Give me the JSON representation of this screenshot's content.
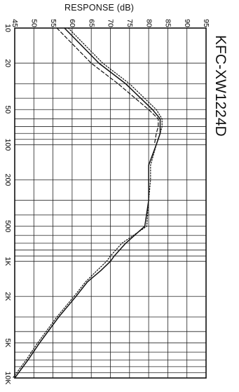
{
  "chart_data": {
    "type": "line",
    "title": "KFC-XW1224D",
    "ylabel": "RESPONSE (dB)",
    "xlabel": "",
    "x_scale": "log",
    "xlim": [
      10,
      10000
    ],
    "ylim": [
      45,
      95
    ],
    "x_ticks": [
      10,
      20,
      50,
      100,
      200,
      500,
      1000,
      2000,
      5000,
      10000
    ],
    "x_tick_labels": [
      "10",
      "20",
      "50",
      "100",
      "200",
      "500",
      "1K",
      "2K",
      "5K",
      "10K"
    ],
    "y_ticks": [
      45,
      50,
      55,
      60,
      65,
      70,
      75,
      80,
      85,
      90,
      95
    ],
    "y_tick_labels": [
      "45",
      "50",
      "55",
      "60",
      "65",
      "70",
      "75",
      "80",
      "85",
      "90",
      "95"
    ],
    "grid": true,
    "orientation": "rotated-90",
    "series": [
      {
        "style": "solid",
        "x": [
          10,
          20,
          30,
          50,
          60,
          70,
          80,
          100,
          150,
          200,
          300,
          500,
          700,
          900,
          1000,
          1200,
          1500,
          2000,
          3000,
          5000,
          7000,
          10000
        ],
        "y": [
          58,
          67,
          74,
          81,
          83,
          83,
          83,
          82,
          80,
          80,
          80,
          79,
          74,
          71,
          70,
          67.5,
          64,
          61,
          56.5,
          51.5,
          48.5,
          45
        ]
      },
      {
        "style": "dotted",
        "x": [
          10,
          20,
          30,
          50,
          60,
          70,
          80,
          100,
          150,
          200,
          300,
          500,
          700,
          900,
          1000,
          1200,
          1500,
          2000,
          3000,
          5000,
          7000,
          10000
        ],
        "y": [
          59,
          68,
          75,
          82,
          83.5,
          83.5,
          83,
          82,
          80.5,
          80.5,
          80,
          79.5,
          73,
          70,
          69,
          66.5,
          63.5,
          60.5,
          56,
          51,
          48,
          44.5
        ]
      },
      {
        "style": "dashed",
        "x": [
          10,
          20,
          30,
          50,
          60,
          70,
          80,
          100
        ],
        "y": [
          56,
          65,
          72,
          80,
          82.5,
          82.5,
          82,
          81.5
        ]
      }
    ]
  }
}
